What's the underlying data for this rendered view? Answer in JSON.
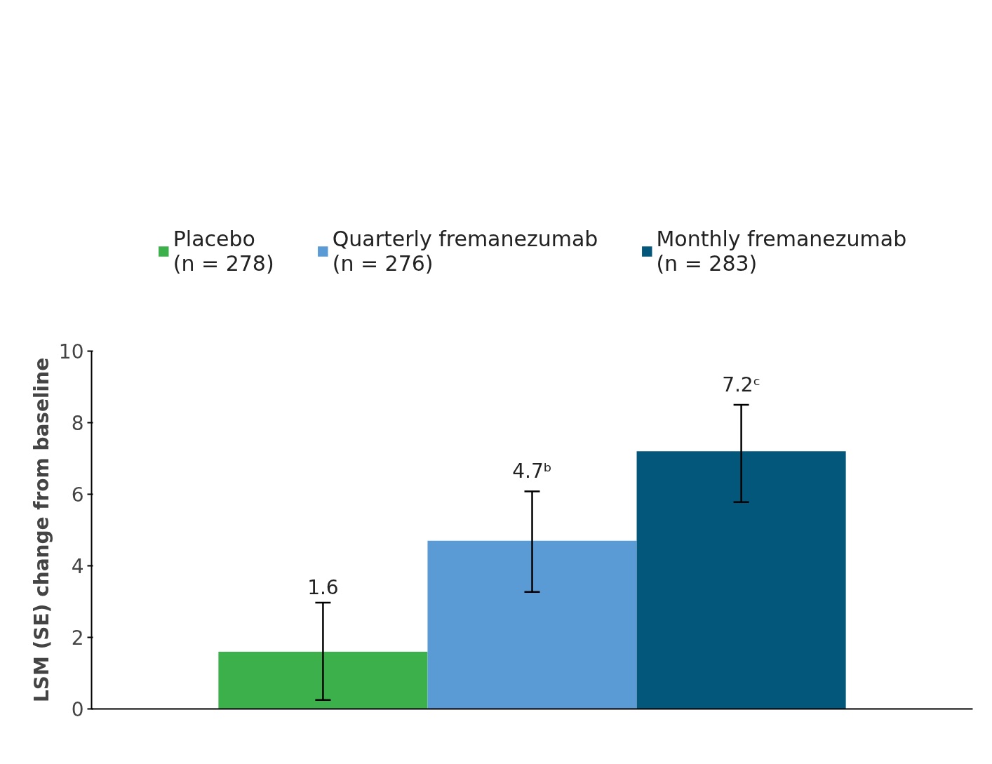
{
  "chart_data": {
    "type": "bar",
    "ylabel": "LSM (SE) change from baseline",
    "categories": [
      null
    ],
    "series": [
      {
        "name": "Placebo\n(n = 278)",
        "color": "#3cb04b",
        "values": [
          1.6
        ],
        "errors": [
          [
            0.25,
            2.97
          ]
        ],
        "value_labels": [
          "1.6"
        ]
      },
      {
        "name": "Quarterly fremanezumab\n(n = 276)",
        "color": "#5b9bd5",
        "values": [
          4.7
        ],
        "errors": [
          [
            3.27,
            6.08
          ]
        ],
        "value_labels": [
          "4.7ᵇ"
        ]
      },
      {
        "name": "Monthly fremanezumab\n(n = 283)",
        "color": "#02577a",
        "values": [
          7.2
        ],
        "errors": [
          [
            5.78,
            8.5
          ]
        ],
        "value_labels": [
          "7.2ᶜ"
        ]
      }
    ],
    "ylim": [
      0,
      10
    ],
    "yticks": [
      0,
      2,
      4,
      6,
      8,
      10
    ],
    "grid": false,
    "legend": "top"
  }
}
